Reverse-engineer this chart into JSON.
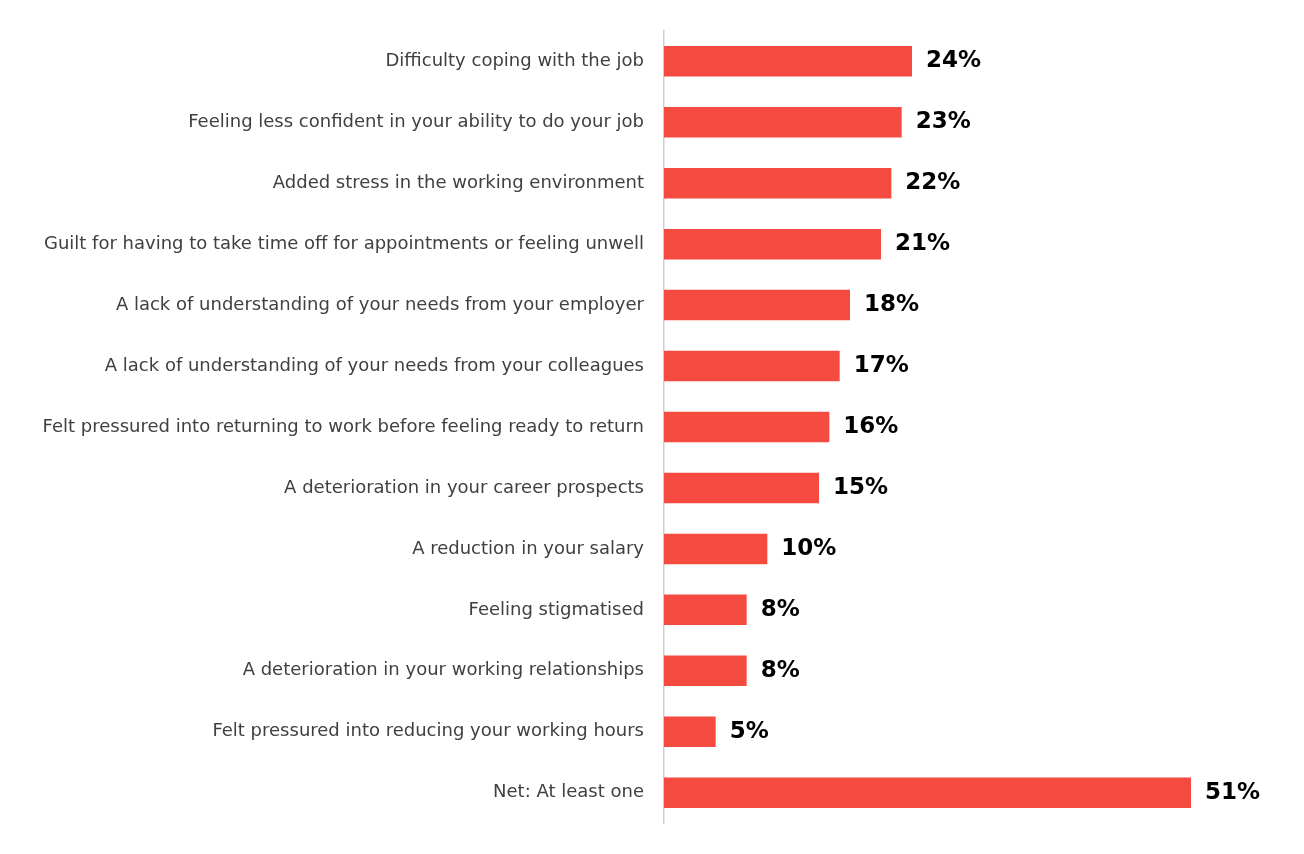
{
  "chart_data": {
    "type": "bar",
    "orientation": "horizontal",
    "categories": [
      "Difficulty coping with the job",
      "Feeling less confident in your ability to do your job",
      "Added stress in the working environment",
      "Guilt for having to take time off for appointments or feeling unwell",
      "A lack of understanding of your needs from your employer",
      "A lack of understanding of your needs from your colleagues",
      "Felt pressured into returning to work before feeling ready to return",
      "A deterioration in your career prospects",
      "A reduction in your salary",
      "Feeling stigmatised",
      "A deterioration in your working relationships",
      "Felt pressured into reducing your working hours",
      "Net: At least one"
    ],
    "values": [
      24,
      23,
      22,
      21,
      18,
      17,
      16,
      15,
      10,
      8,
      8,
      5,
      51
    ],
    "value_labels": [
      "24%",
      "23%",
      "22%",
      "21%",
      "18%",
      "17%",
      "16%",
      "15%",
      "10%",
      "8%",
      "8%",
      "5%",
      "51%"
    ],
    "color": "#f44a40",
    "tick_labels": "y",
    "grid": false
  }
}
